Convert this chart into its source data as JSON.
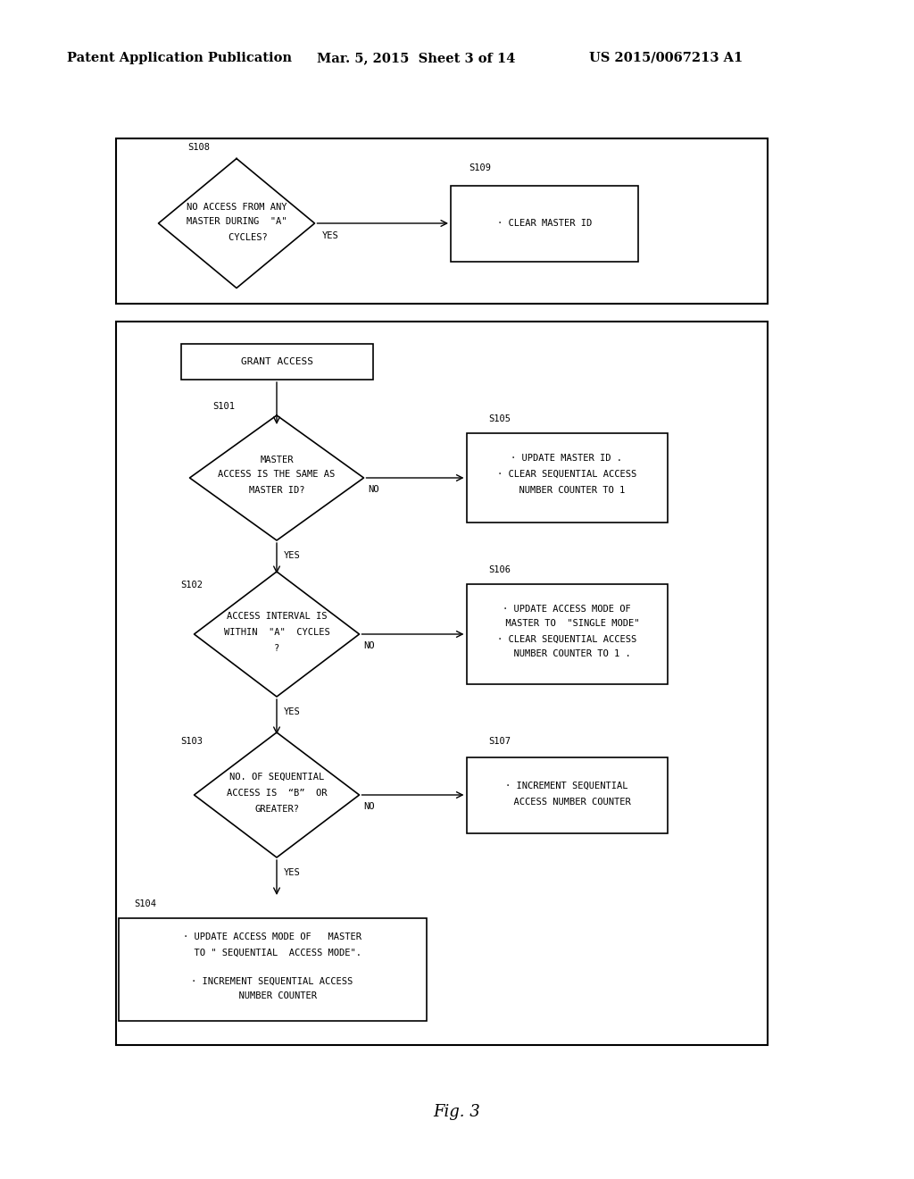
{
  "bg_color": "#ffffff",
  "header_left": "Patent Application Publication",
  "header_mid": "Mar. 5, 2015  Sheet 3 of 14",
  "header_right": "US 2015/0067213 A1",
  "fig_label": "Fig. 3",
  "header_fontsize": 10.5,
  "diagram_fontsize": 7.5
}
